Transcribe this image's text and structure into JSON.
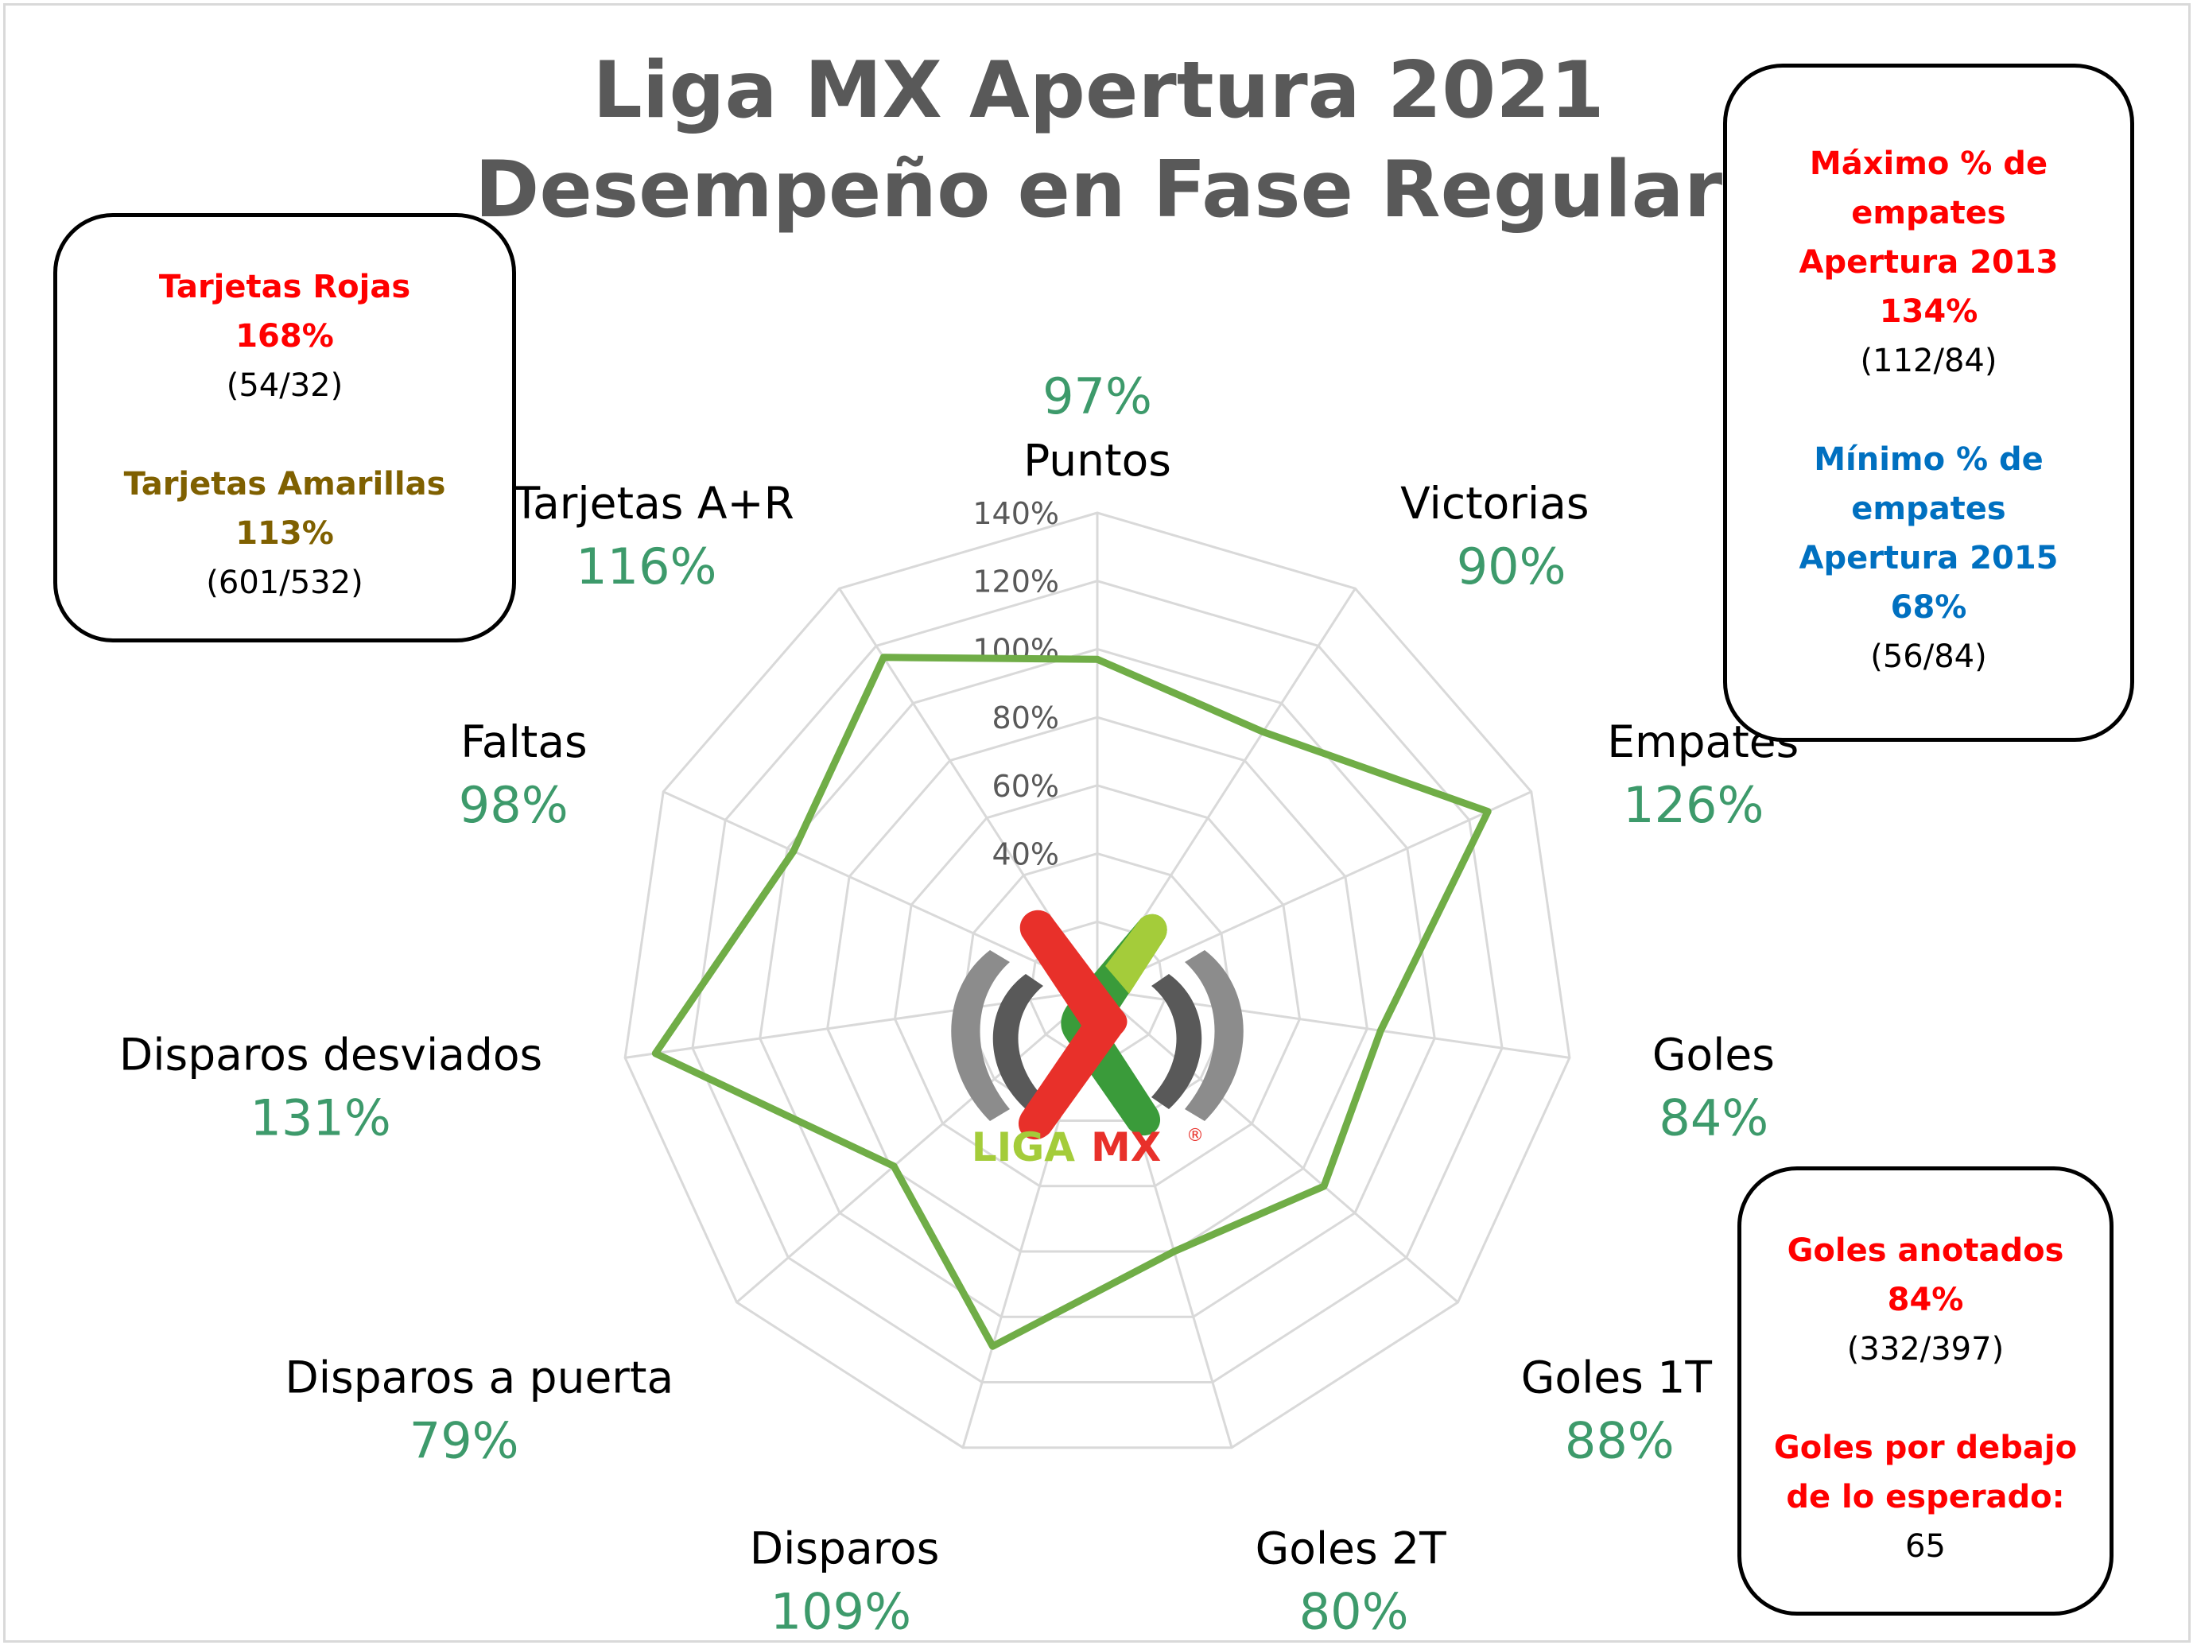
{
  "title_line1": "Liga MX Apertura 2021",
  "title_line2": "Desempeño en Fase Regular",
  "left_box": {
    "red_cards_label": "Tarjetas Rojas",
    "red_cards_pct": "168%",
    "red_cards_ratio": "(54/32)",
    "yellow_cards_label": "Tarjetas Amarillas",
    "yellow_cards_pct": "113%",
    "yellow_cards_ratio": "(601/532)"
  },
  "top_right_box": {
    "max_line1": "Máximo % de",
    "max_line2": "empates",
    "max_line3": "Apertura 2013",
    "max_pct": "134%",
    "max_ratio": "(112/84)",
    "min_line1": "Mínimo % de",
    "min_line2": "empates",
    "min_line3": "Apertura 2015",
    "min_pct": "68%",
    "min_ratio": "(56/84)"
  },
  "bottom_right_box": {
    "goals_label": "Goles anotados",
    "goals_pct": "84%",
    "goals_ratio": "(332/397)",
    "below_line1": "Goles por debajo",
    "below_line2": "de lo esperado:",
    "below_value": "65"
  },
  "logo": {
    "text_liga": "LIGA",
    "text_mx": "MX",
    "registered": "®"
  },
  "colors": {
    "series_line": "#70ad47",
    "pct_label": "#3d9a6b",
    "grid": "#d9d9d9",
    "red": "#ff0000",
    "gold": "#7f6000",
    "blue": "#0070c0"
  },
  "chart_data": {
    "type": "radar",
    "categories": [
      "Puntos",
      "Victorias",
      "Empates",
      "Goles",
      "Goles 1T",
      "Goles 2T",
      "Disparos",
      "Disparos a puerta",
      "Disparos desviados",
      "Faltas",
      "Tarjetas A+R"
    ],
    "values": [
      97,
      90,
      126,
      84,
      88,
      80,
      109,
      79,
      131,
      98,
      116
    ],
    "value_labels": [
      "97%",
      "90%",
      "126%",
      "84%",
      "88%",
      "80%",
      "109%",
      "79%",
      "131%",
      "98%",
      "116%"
    ],
    "r_range": [
      0,
      140
    ],
    "r_ticks": [
      0,
      20,
      40,
      60,
      80,
      100,
      120,
      140
    ],
    "r_tick_labels": [
      "0%",
      "20%",
      "40%",
      "60%",
      "80%",
      "100%",
      "120%",
      "140%"
    ],
    "visible_r_tick_labels": [
      "40%",
      "60%",
      "80%",
      "100%",
      "120%",
      "140%"
    ],
    "grid": true
  }
}
